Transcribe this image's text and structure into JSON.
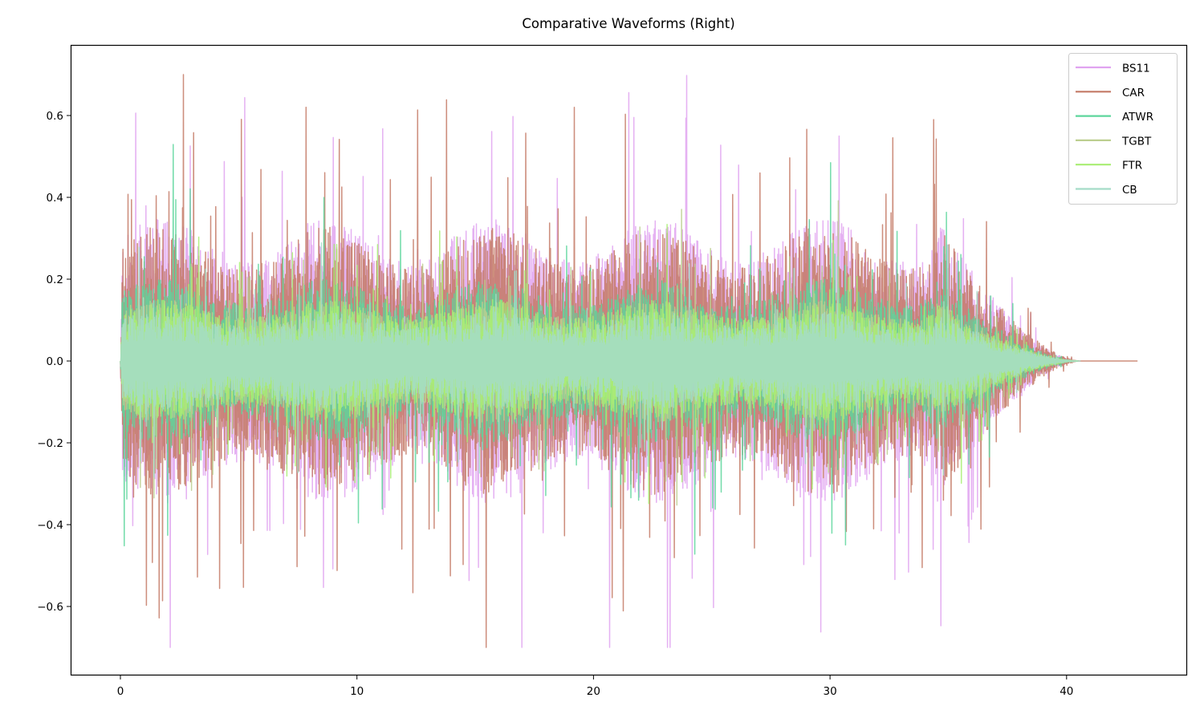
{
  "chart_data": {
    "type": "line",
    "title": "Comparative Waveforms (Right)",
    "xlabel": "",
    "ylabel": "",
    "xlim": [
      -2.1,
      45.1
    ],
    "ylim": [
      -0.77,
      0.77
    ],
    "x_ticks": [
      0,
      10,
      20,
      30,
      40
    ],
    "y_ticks": [
      -0.6,
      -0.4,
      -0.2,
      0.0,
      0.2,
      0.4,
      0.6
    ],
    "y_tick_labels": [
      "−0.6",
      "−0.4",
      "−0.2",
      "0.0",
      "0.2",
      "0.4",
      "0.6"
    ],
    "grid": false,
    "legend_position": "upper right",
    "series": [
      {
        "name": "BS11",
        "color": "#e0a3f0",
        "duration_s": 40.5,
        "peak_pos": 0.7,
        "peak_neg": -0.7,
        "typical_envelope": 0.35
      },
      {
        "name": "CAR",
        "color": "#c47a66",
        "duration_s": 43.0,
        "peak_pos": 0.7,
        "peak_neg": -0.69,
        "typical_envelope": 0.33
      },
      {
        "name": "ATWR",
        "color": "#5dd69c",
        "duration_s": 40.5,
        "peak_pos": 0.53,
        "peak_neg": -0.45,
        "typical_envelope": 0.2
      },
      {
        "name": "TGBT",
        "color": "#bccf8f",
        "duration_s": 40.5,
        "peak_pos": 0.45,
        "peak_neg": -0.42,
        "typical_envelope": 0.15
      },
      {
        "name": "FTR",
        "color": "#a8ee72",
        "duration_s": 40.5,
        "peak_pos": 0.48,
        "peak_neg": -0.46,
        "typical_envelope": 0.15
      },
      {
        "name": "CB",
        "color": "#a5dcc8",
        "duration_s": 40.6,
        "peak_pos": 0.54,
        "peak_neg": -0.44,
        "typical_envelope": 0.12
      }
    ]
  },
  "legend": {
    "items": [
      {
        "label": "BS11",
        "color": "#e0a3f0"
      },
      {
        "label": "CAR",
        "color": "#c47a66"
      },
      {
        "label": "ATWR",
        "color": "#5dd69c"
      },
      {
        "label": "TGBT",
        "color": "#bccf8f"
      },
      {
        "label": "FTR",
        "color": "#a8ee72"
      },
      {
        "label": "CB",
        "color": "#a5dcc8"
      }
    ]
  }
}
